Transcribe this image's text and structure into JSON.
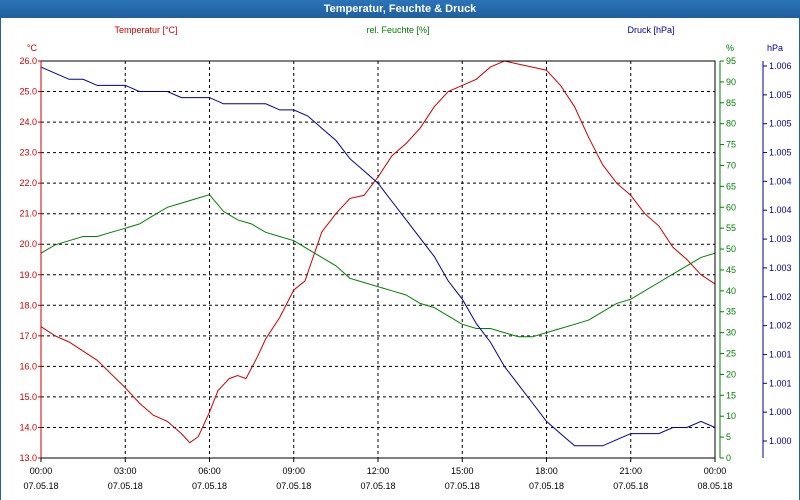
{
  "window": {
    "title": "Temperatur, Feuchte & Druck"
  },
  "chart_data": {
    "type": "line",
    "title": "Temperatur, Feuchte & Druck",
    "x_range": [
      0,
      24
    ],
    "x_ticks": [
      {
        "time": "00:00",
        "date": "07.05.18"
      },
      {
        "time": "03:00",
        "date": "07.05.18"
      },
      {
        "time": "06:00",
        "date": "07.05.18"
      },
      {
        "time": "09:00",
        "date": "07.05.18"
      },
      {
        "time": "12:00",
        "date": "07.05.18"
      },
      {
        "time": "15:00",
        "date": "07.05.18"
      },
      {
        "time": "18:00",
        "date": "07.05.18"
      },
      {
        "time": "21:00",
        "date": "07.05.18"
      },
      {
        "time": "00:00",
        "date": "08.05.18"
      }
    ],
    "axes": {
      "temperature": {
        "label": "Temperatur [°C]",
        "unit": "°C",
        "color": "#cc0000",
        "range": [
          13.0,
          26.0
        ],
        "ticks": [
          "13.0",
          "14.0",
          "15.0",
          "16.0",
          "17.0",
          "18.0",
          "19.0",
          "20.0",
          "21.0",
          "22.0",
          "23.0",
          "24.0",
          "25.0",
          "26.0"
        ]
      },
      "humidity": {
        "label": "rel. Feuchte [%]",
        "unit": "%",
        "color": "#008000",
        "range": [
          0,
          95
        ],
        "ticks": [
          "0",
          "5",
          "10",
          "15",
          "20",
          "25",
          "30",
          "35",
          "40",
          "45",
          "50",
          "55",
          "60",
          "65",
          "70",
          "75",
          "80",
          "85",
          "90",
          "95"
        ]
      },
      "pressure": {
        "label": "Druck [hPa]",
        "unit": "hPa",
        "color": "#000099",
        "range": [
          0.9998,
          1.0063
        ],
        "ticks": [
          "1.000",
          "1.000",
          "1.001",
          "1.001",
          "1.002",
          "1.002",
          "1.003",
          "1.003",
          "1.004",
          "1.004",
          "1.005",
          "1.005",
          "1.005",
          "1.006"
        ]
      }
    },
    "series": [
      {
        "name": "Temperatur",
        "axis": "temperature",
        "color": "#cc0000",
        "x": [
          0,
          0.5,
          1,
          2,
          3,
          3.5,
          4,
          4.5,
          5,
          5.3,
          5.6,
          6,
          6.3,
          6.7,
          7,
          7.3,
          7.7,
          8,
          8.5,
          9,
          9.4,
          9.7,
          10,
          10.5,
          11,
          11.5,
          12,
          12.5,
          13,
          13.5,
          14,
          14.5,
          15,
          15.5,
          16,
          16.5,
          17,
          17.5,
          18,
          18.5,
          19,
          19.5,
          20,
          20.5,
          21,
          21.5,
          22,
          22.5,
          23,
          23.5,
          24
        ],
        "values": [
          17.3,
          17.0,
          16.8,
          16.2,
          15.3,
          14.8,
          14.4,
          14.2,
          13.8,
          13.5,
          13.7,
          14.5,
          15.2,
          15.6,
          15.7,
          15.6,
          16.3,
          16.9,
          17.6,
          18.5,
          18.8,
          19.6,
          20.4,
          21.0,
          21.5,
          21.6,
          22.2,
          22.9,
          23.3,
          23.8,
          24.5,
          25.0,
          25.2,
          25.4,
          25.8,
          26.0,
          25.9,
          25.8,
          25.7,
          25.2,
          24.5,
          23.5,
          22.6,
          22.0,
          21.6,
          21.0,
          20.6,
          19.9,
          19.5,
          19.0,
          18.7
        ]
      },
      {
        "name": "rel. Feuchte",
        "axis": "humidity",
        "color": "#008000",
        "x": [
          0,
          0.5,
          1,
          1.5,
          2,
          2.5,
          3,
          3.5,
          4,
          4.5,
          5,
          5.5,
          6,
          6.5,
          7,
          7.5,
          8,
          8.5,
          9,
          9.5,
          10,
          10.5,
          11,
          11.5,
          12,
          12.5,
          13,
          13.5,
          14,
          14.5,
          15,
          15.5,
          16,
          16.5,
          17,
          17.5,
          18,
          18.5,
          19,
          19.5,
          20,
          20.5,
          21,
          21.5,
          22,
          22.5,
          23,
          23.5,
          24
        ],
        "values": [
          49,
          51,
          52,
          53,
          53,
          54,
          55,
          56,
          58,
          60,
          61,
          62,
          63,
          59,
          57,
          56,
          54,
          53,
          52,
          50,
          48,
          46,
          43,
          42,
          41,
          40,
          39,
          37,
          36,
          34,
          32,
          31,
          31,
          30,
          29,
          29,
          30,
          31,
          32,
          33,
          35,
          37,
          38,
          40,
          42,
          44,
          46,
          48,
          49
        ]
      },
      {
        "name": "Druck",
        "axis": "pressure",
        "color": "#000099",
        "x": [
          0,
          0.5,
          1,
          1.5,
          2,
          2.5,
          3,
          3.5,
          4,
          4.5,
          5,
          5.5,
          6,
          6.5,
          7,
          7.5,
          8,
          8.5,
          9,
          9.5,
          10,
          10.5,
          11,
          11.5,
          12,
          12.5,
          13,
          13.5,
          14,
          14.5,
          15,
          15.5,
          16,
          16.5,
          17,
          17.5,
          18,
          18.5,
          19,
          19.5,
          20,
          20.5,
          21,
          21.5,
          22,
          22.5,
          23,
          23.5,
          24
        ],
        "values": [
          1.0062,
          1.0061,
          1.006,
          1.006,
          1.0059,
          1.0059,
          1.0059,
          1.0058,
          1.0058,
          1.0058,
          1.0057,
          1.0057,
          1.0057,
          1.0056,
          1.0056,
          1.0056,
          1.0056,
          1.0055,
          1.0055,
          1.0054,
          1.0052,
          1.005,
          1.0047,
          1.0045,
          1.0043,
          1.004,
          1.0037,
          1.0034,
          1.0031,
          1.0027,
          1.0024,
          1.002,
          1.0017,
          1.0013,
          1.001,
          1.0007,
          1.0004,
          1.0002,
          1.0,
          1.0,
          1.0,
          1.0001,
          1.0002,
          1.0002,
          1.0002,
          1.0003,
          1.0003,
          1.0004,
          1.0003
        ]
      }
    ]
  }
}
